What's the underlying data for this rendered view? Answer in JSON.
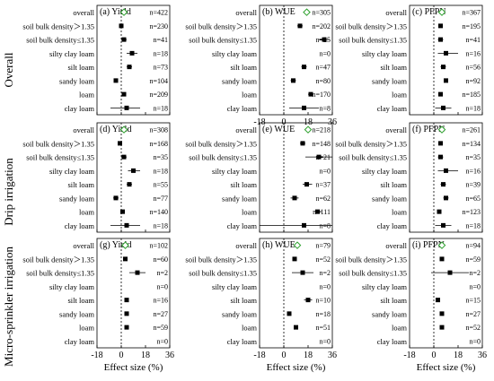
{
  "row_labels": [
    "Overall",
    "Drip irrigation",
    "Micro-sprinkler irrigation"
  ],
  "x_axis_label": "Effect size (%)",
  "ticks": [
    "-18",
    "0",
    "18",
    "36"
  ],
  "overall_marker_color": "#2ca02c",
  "point_color": "#000000",
  "chart_data": [
    {
      "panel": "(a) Yield",
      "type": "forest",
      "xlim": [
        -18,
        36
      ],
      "show_x_axis": false,
      "categories": [
        "overall",
        "soil bulk density＞1.35",
        "soil bulk density≤1.35",
        "silty clay loam",
        "silt loam",
        "sandy loam",
        "loam",
        "clay loam"
      ],
      "values": [
        2,
        0,
        2,
        8,
        6,
        -4,
        2,
        4
      ],
      "ci_low": [
        1,
        -1,
        0,
        4,
        4,
        -5,
        1,
        -8
      ],
      "ci_high": [
        3,
        1,
        4,
        12,
        8,
        -3,
        3,
        14
      ],
      "n_labels": [
        "n=422",
        "n=230",
        "n=41",
        "n=18",
        "n=73",
        "n=104",
        "n=209",
        "n=18"
      ]
    },
    {
      "panel": "(b) WUE",
      "type": "forest",
      "xlim": [
        -18,
        36
      ],
      "show_x_axis": true,
      "categories": [
        "overall",
        "soil bulk density＞1.35",
        "soil bulk density≤1.35",
        "silty clay loam",
        "silt loam",
        "sandy loam",
        "loam",
        "clay loam"
      ],
      "values": [
        17,
        12,
        30,
        null,
        15,
        7,
        20,
        15
      ],
      "ci_low": [
        15,
        10,
        26,
        null,
        13,
        5,
        18,
        4
      ],
      "ci_high": [
        19,
        14,
        34,
        null,
        17,
        9,
        22,
        26
      ],
      "n_labels": [
        "n=305",
        "n=202",
        "n=25",
        "n=0",
        "n=47",
        "n=80",
        "n=170",
        "n=8"
      ]
    },
    {
      "panel": "(c) PFPN",
      "type": "forest",
      "xlim": [
        -18,
        36
      ],
      "show_x_axis": false,
      "categories": [
        "overall",
        "soil bulk density＞1.35",
        "soil bulk density≤1.35",
        "silty clay loam",
        "silt loam",
        "sandy loam",
        "loam",
        "clay loam"
      ],
      "values": [
        6,
        5,
        5,
        9,
        7,
        9,
        5,
        7
      ],
      "ci_low": [
        5,
        4,
        3,
        3,
        5,
        8,
        4,
        1
      ],
      "ci_high": [
        7,
        6,
        7,
        18,
        9,
        10,
        6,
        13
      ],
      "n_labels": [
        "n=367",
        "n=195",
        "n=41",
        "n=16",
        "n=56",
        "n=92",
        "n=185",
        "n=18"
      ]
    },
    {
      "panel": "(d) Yield",
      "type": "forest",
      "xlim": [
        -18,
        36
      ],
      "show_x_axis": false,
      "categories": [
        "overall",
        "soil bulk density＞1.35",
        "soil bulk density≤1.35",
        "silty clay loam",
        "silt loam",
        "sandy loam",
        "loam",
        "clay loam"
      ],
      "values": [
        2,
        -1,
        2,
        9,
        6,
        -4,
        1,
        4
      ],
      "ci_low": [
        1,
        -2,
        0,
        5,
        4,
        -6,
        0,
        -8
      ],
      "ci_high": [
        3,
        0,
        4,
        14,
        8,
        -2,
        2,
        14
      ],
      "n_labels": [
        "n=308",
        "n=168",
        "n=35",
        "n=18",
        "n=55",
        "n=77",
        "n=140",
        "n=18"
      ]
    },
    {
      "panel": "(e) WUE",
      "type": "forest",
      "xlim": [
        -18,
        36
      ],
      "show_x_axis": false,
      "categories": [
        "overall",
        "soil bulk density＞1.35",
        "soil bulk density≤1.35",
        "silty clay loam",
        "silt loam",
        "sandy loam",
        "loam",
        "clay loam"
      ],
      "values": [
        18,
        14,
        26,
        null,
        17,
        8,
        25,
        15
      ],
      "ci_low": [
        16,
        12,
        16,
        null,
        14,
        5,
        23,
        -18
      ],
      "ci_high": [
        20,
        16,
        36,
        null,
        21,
        11,
        28,
        36
      ],
      "n_labels": [
        "n=218",
        "n=148",
        "n=21",
        "n=0",
        "n=37",
        "n=62",
        "n=111",
        "n=8"
      ]
    },
    {
      "panel": "(f) PFPN",
      "type": "forest",
      "xlim": [
        -18,
        36
      ],
      "show_x_axis": false,
      "categories": [
        "overall",
        "soil bulk density＞1.35",
        "soil bulk density≤1.35",
        "silty clay loam",
        "silt loam",
        "sandy loam",
        "loam",
        "clay loam"
      ],
      "values": [
        6,
        5,
        5,
        9,
        7,
        9,
        4,
        7
      ],
      "ci_low": [
        5,
        4,
        3,
        3,
        5,
        7,
        3,
        1
      ],
      "ci_high": [
        7,
        6,
        7,
        18,
        9,
        11,
        5,
        13
      ],
      "n_labels": [
        "n=261",
        "n=134",
        "n=35",
        "n=16",
        "n=39",
        "n=65",
        "n=123",
        "n=18"
      ]
    },
    {
      "panel": "(g) Yield",
      "type": "forest",
      "xlim": [
        -18,
        36
      ],
      "show_x_axis": true,
      "categories": [
        "overall",
        "soil bulk density＞1.35",
        "soil bulk density≤1.35",
        "silty clay loam",
        "silt loam",
        "sandy loam",
        "loam",
        "clay loam"
      ],
      "values": [
        3,
        3,
        12,
        null,
        4,
        4,
        4,
        null
      ],
      "ci_low": [
        2,
        2,
        6,
        null,
        3,
        3,
        3,
        null
      ],
      "ci_high": [
        4,
        4,
        18,
        null,
        5,
        5,
        5,
        null
      ],
      "n_labels": [
        "n=102",
        "n=60",
        "n=2",
        "n=0",
        "n=16",
        "n=27",
        "n=59",
        "n=0"
      ]
    },
    {
      "panel": "(h) WUE",
      "type": "forest",
      "xlim": [
        -18,
        36
      ],
      "show_x_axis": true,
      "categories": [
        "overall",
        "soil bulk density＞1.35",
        "soil bulk density≤1.35",
        "silty clay loam",
        "silt loam",
        "sandy loam",
        "loam",
        "clay loam"
      ],
      "values": [
        10,
        8,
        14,
        null,
        18,
        4,
        9,
        null
      ],
      "ci_low": [
        9,
        7,
        6,
        null,
        15,
        3,
        8,
        null
      ],
      "ci_high": [
        11,
        9,
        22,
        null,
        21,
        5,
        10,
        null
      ],
      "n_labels": [
        "n=79",
        "n=52",
        "n=2",
        "n=0",
        "n=10",
        "n=18",
        "n=51",
        "n=0"
      ]
    },
    {
      "panel": "(i) PFPN",
      "type": "forest",
      "xlim": [
        -18,
        36
      ],
      "show_x_axis": true,
      "categories": [
        "overall",
        "soil bulk density＞1.35",
        "soil bulk density≤1.35",
        "silty clay loam",
        "silt loam",
        "sandy loam",
        "loam",
        "clay loam"
      ],
      "values": [
        6,
        6,
        12,
        null,
        3,
        6,
        6,
        null
      ],
      "ci_low": [
        5,
        5,
        -2,
        null,
        2,
        5,
        5,
        null
      ],
      "ci_high": [
        7,
        7,
        26,
        null,
        4,
        7,
        7,
        null
      ],
      "n_labels": [
        "n=94",
        "n=59",
        "n=2",
        "n=0",
        "n=15",
        "n=27",
        "n=52",
        "n=0"
      ]
    }
  ]
}
